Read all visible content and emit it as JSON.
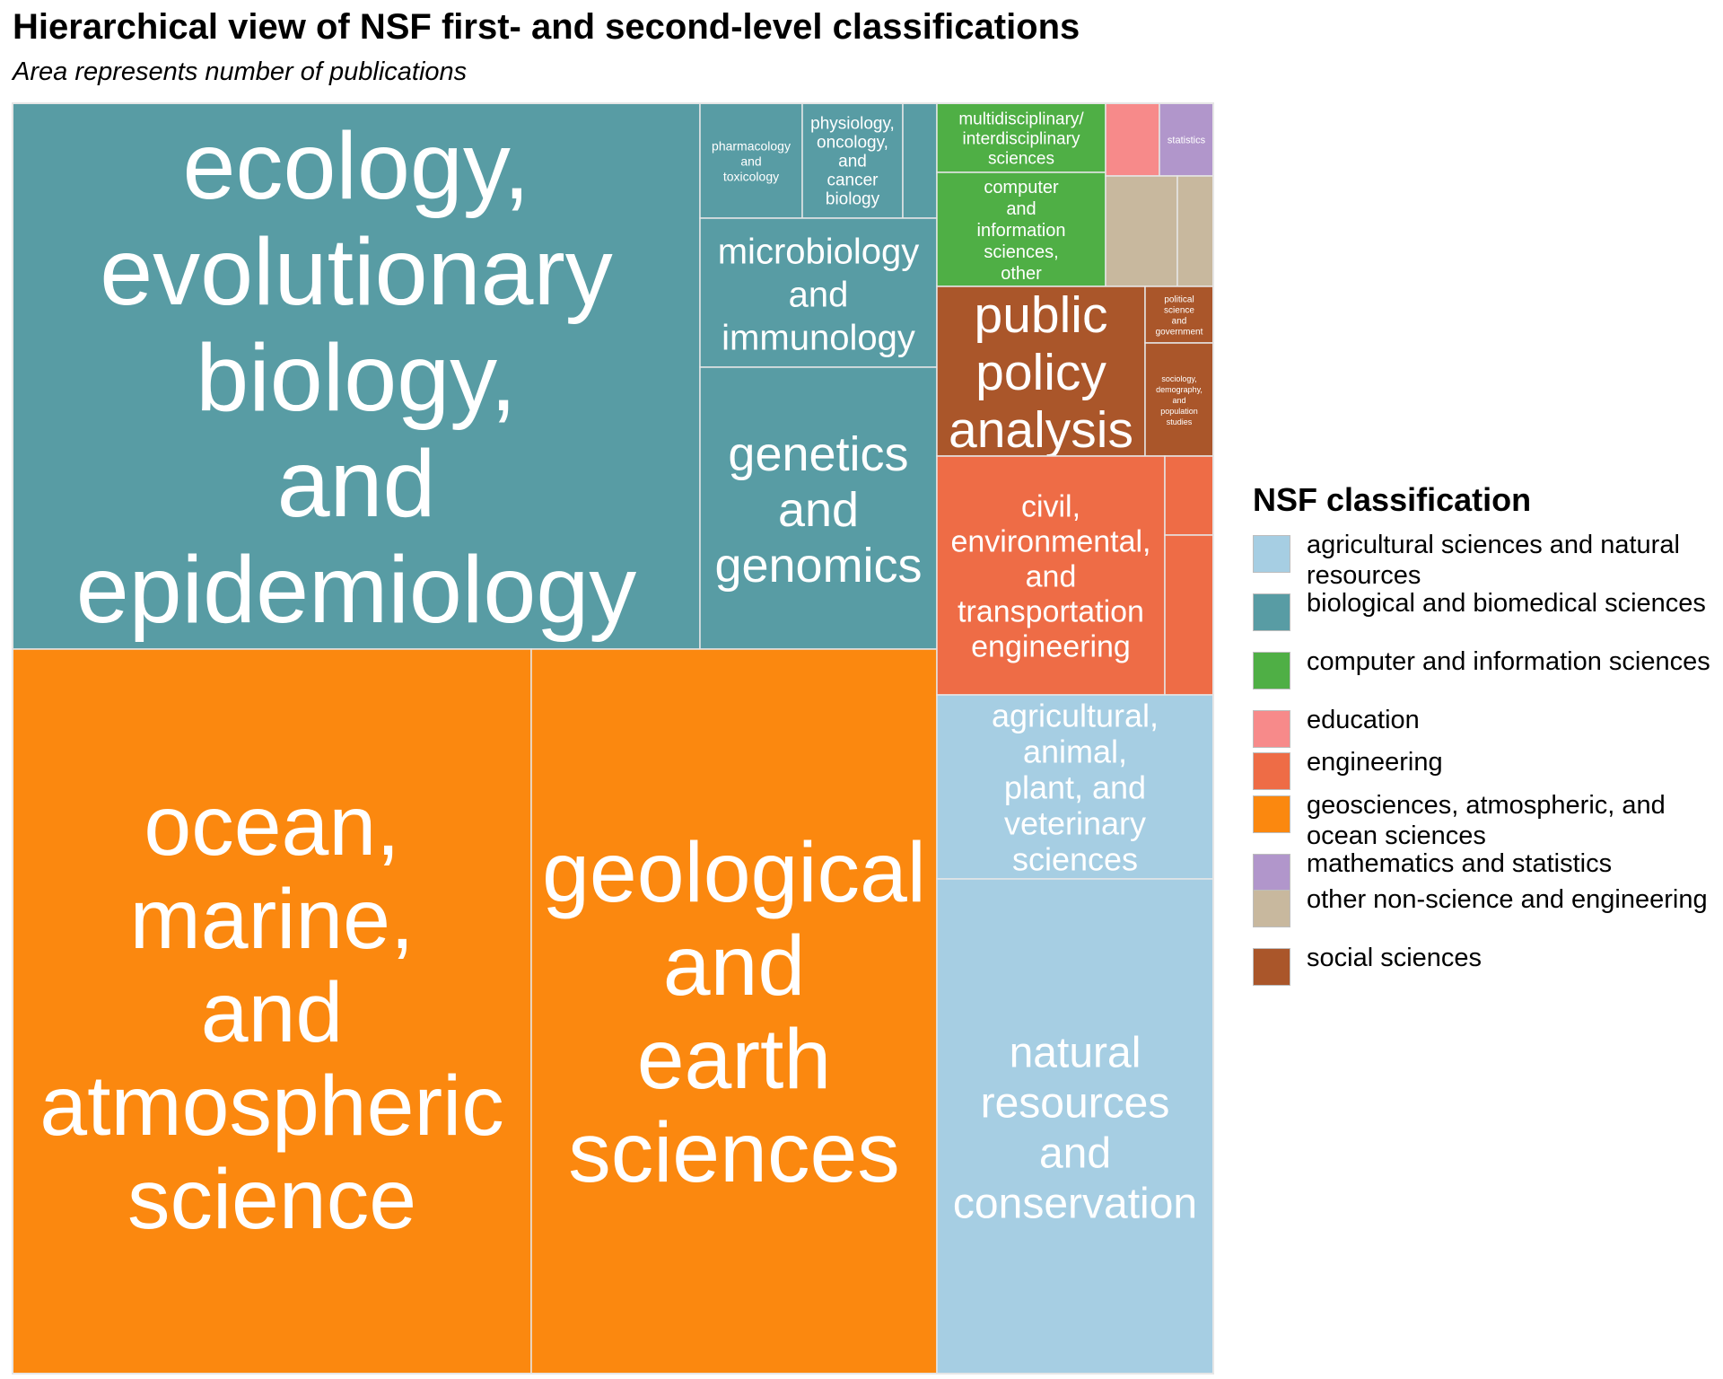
{
  "chart_data": {
    "type": "treemap",
    "title": "Hierarchical view of NSF first- and second-level classifications",
    "subtitle": "Area represents number of publications",
    "legend": {
      "title": "NSF classification",
      "placement": "right",
      "entries": [
        {
          "name": "agricultural sciences and natural resources",
          "color": "#A6CEE3"
        },
        {
          "name": "biological and biomedical sciences",
          "color": "#589CA4"
        },
        {
          "name": "computer and information sciences",
          "color": "#4FAF45"
        },
        {
          "name": "education",
          "color": "#F78A8A"
        },
        {
          "name": "engineering",
          "color": "#EE6C46"
        },
        {
          "name": "geosciences, atmospheric, and ocean sciences",
          "color": "#FB880F"
        },
        {
          "name": "mathematics and statistics",
          "color": "#B196CB"
        },
        {
          "name": "other non-science and engineering",
          "color": "#C8B89E"
        },
        {
          "name": "social sciences",
          "color": "#AA562A"
        }
      ]
    },
    "nodes": [
      {
        "group": "biological and biomedical sciences",
        "label": "ecology, evolutionary biology, and epidemiology",
        "value": 7650
      },
      {
        "group": "biological and biomedical sciences",
        "label": "pharmacology and toxicology",
        "value": 190
      },
      {
        "group": "biological and biomedical sciences",
        "label": "physiology, oncology, and cancer biology",
        "value": 190
      },
      {
        "group": "biological and biomedical sciences",
        "label": "",
        "value": 70
      },
      {
        "group": "biological and biomedical sciences",
        "label": "microbiology and immunology",
        "value": 700
      },
      {
        "group": "biological and biomedical sciences",
        "label": "genetics and genomics",
        "value": 1500
      },
      {
        "group": "geosciences, atmospheric, and ocean sciences",
        "label": "ocean, marine, and atmospheric science",
        "value": 13500
      },
      {
        "group": "geosciences, atmospheric, and ocean sciences",
        "label": "geological and earth sciences",
        "value": 10300
      },
      {
        "group": "computer and information sciences",
        "label": "multidisciplinary/ interdisciplinary sciences",
        "value": 400
      },
      {
        "group": "computer and information sciences",
        "label": "computer and information sciences, other",
        "value": 620
      },
      {
        "group": "education",
        "label": "",
        "value": 124
      },
      {
        "group": "mathematics and statistics",
        "label": "statistics",
        "value": 124
      },
      {
        "group": "other non-science and engineering",
        "label": "",
        "value": 260
      },
      {
        "group": "other non-science and engineering",
        "label": "",
        "value": 130
      },
      {
        "group": "social sciences",
        "label": "public policy analysis",
        "value": 1200
      },
      {
        "group": "social sciences",
        "label": "political science and government",
        "value": 130
      },
      {
        "group": "social sciences",
        "label": "sociology, demography, and population studies",
        "value": 260
      },
      {
        "group": "engineering",
        "label": "civil, environmental, and transportation engineering",
        "value": 2100
      },
      {
        "group": "engineering",
        "label": "",
        "value": 170
      },
      {
        "group": "engineering",
        "label": "",
        "value": 340
      },
      {
        "group": "agricultural sciences and natural resources",
        "label": "agricultural, animal, plant, and veterinary sciences",
        "value": 1750
      },
      {
        "group": "agricultural sciences and natural resources",
        "label": "natural resources and conservation",
        "value": 4700
      }
    ]
  }
}
